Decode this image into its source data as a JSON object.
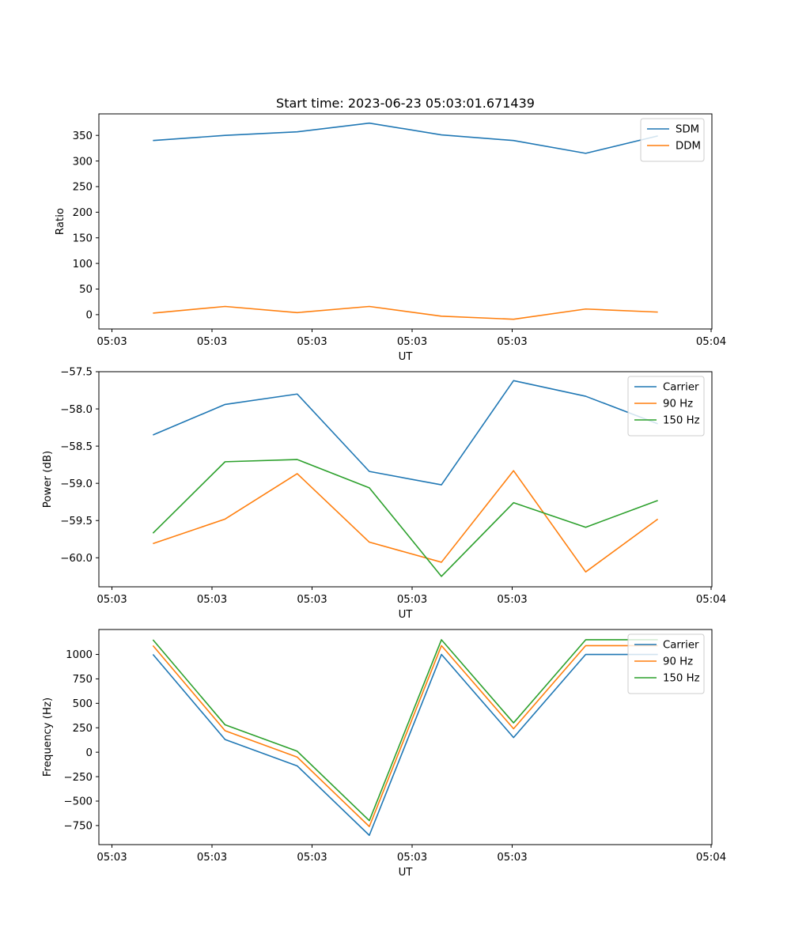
{
  "figure": {
    "title": "Start time: 2023-06-23 05:03:01.671439"
  },
  "chart_data": [
    {
      "type": "line",
      "xlabel": "UT",
      "ylabel": "Ratio",
      "xticks": [
        "05:03",
        "05:03",
        "05:03",
        "05:03",
        "05:03",
        "05:04"
      ],
      "ylim": [
        -28,
        392
      ],
      "yticks": [
        0,
        50,
        100,
        150,
        200,
        250,
        300,
        350
      ],
      "legend_position": "upper right",
      "series": [
        {
          "name": "SDM",
          "color": "#1f77b4",
          "values": [
            340,
            350,
            357,
            374,
            351,
            340,
            315,
            349
          ]
        },
        {
          "name": "DDM",
          "color": "#ff7f0e",
          "values": [
            3,
            16,
            4,
            16,
            -3,
            -9,
            11,
            5
          ]
        }
      ]
    },
    {
      "type": "line",
      "xlabel": "UT",
      "ylabel": "Power (dB)",
      "xticks": [
        "05:03",
        "05:03",
        "05:03",
        "05:03",
        "05:03",
        "05:04"
      ],
      "ylim": [
        -60.39,
        -57.5
      ],
      "yticks": [
        -57.5,
        -58.0,
        -58.5,
        -59.0,
        -59.5,
        -60.0
      ],
      "ytick_labels": [
        "−57.5",
        "−58.0",
        "−58.5",
        "−59.0",
        "−59.5",
        "−60.0"
      ],
      "legend_position": "upper right",
      "series": [
        {
          "name": "Carrier",
          "color": "#1f77b4",
          "values": [
            -58.35,
            -57.94,
            -57.8,
            -58.84,
            -59.02,
            -57.62,
            -57.83,
            -58.2
          ]
        },
        {
          "name": "90 Hz",
          "color": "#ff7f0e",
          "values": [
            -59.81,
            -59.48,
            -58.87,
            -59.79,
            -60.06,
            -58.83,
            -60.19,
            -59.48
          ]
        },
        {
          "name": "150 Hz",
          "color": "#2ca02c",
          "values": [
            -59.67,
            -58.71,
            -58.68,
            -59.06,
            -60.25,
            -59.26,
            -59.59,
            -59.23
          ]
        }
      ]
    },
    {
      "type": "line",
      "xlabel": "UT",
      "ylabel": "Frequency (Hz)",
      "xticks": [
        "05:03",
        "05:03",
        "05:03",
        "05:03",
        "05:03",
        "05:04"
      ],
      "ylim": [
        -945,
        1255
      ],
      "yticks": [
        1000,
        750,
        500,
        250,
        0,
        -250,
        -500,
        -750
      ],
      "ytick_labels": [
        "1000",
        "750",
        "500",
        "250",
        "0",
        "−250",
        "−500",
        "−750"
      ],
      "legend_position": "upper right",
      "series": [
        {
          "name": "Carrier",
          "color": "#1f77b4",
          "values": [
            1000,
            130,
            -140,
            -850,
            1000,
            150,
            1000,
            1000
          ]
        },
        {
          "name": "90 Hz",
          "color": "#ff7f0e",
          "values": [
            1090,
            220,
            -50,
            -760,
            1090,
            240,
            1090,
            1090
          ]
        },
        {
          "name": "150 Hz",
          "color": "#2ca02c",
          "values": [
            1150,
            280,
            10,
            -700,
            1150,
            300,
            1150,
            1150
          ]
        }
      ]
    }
  ]
}
